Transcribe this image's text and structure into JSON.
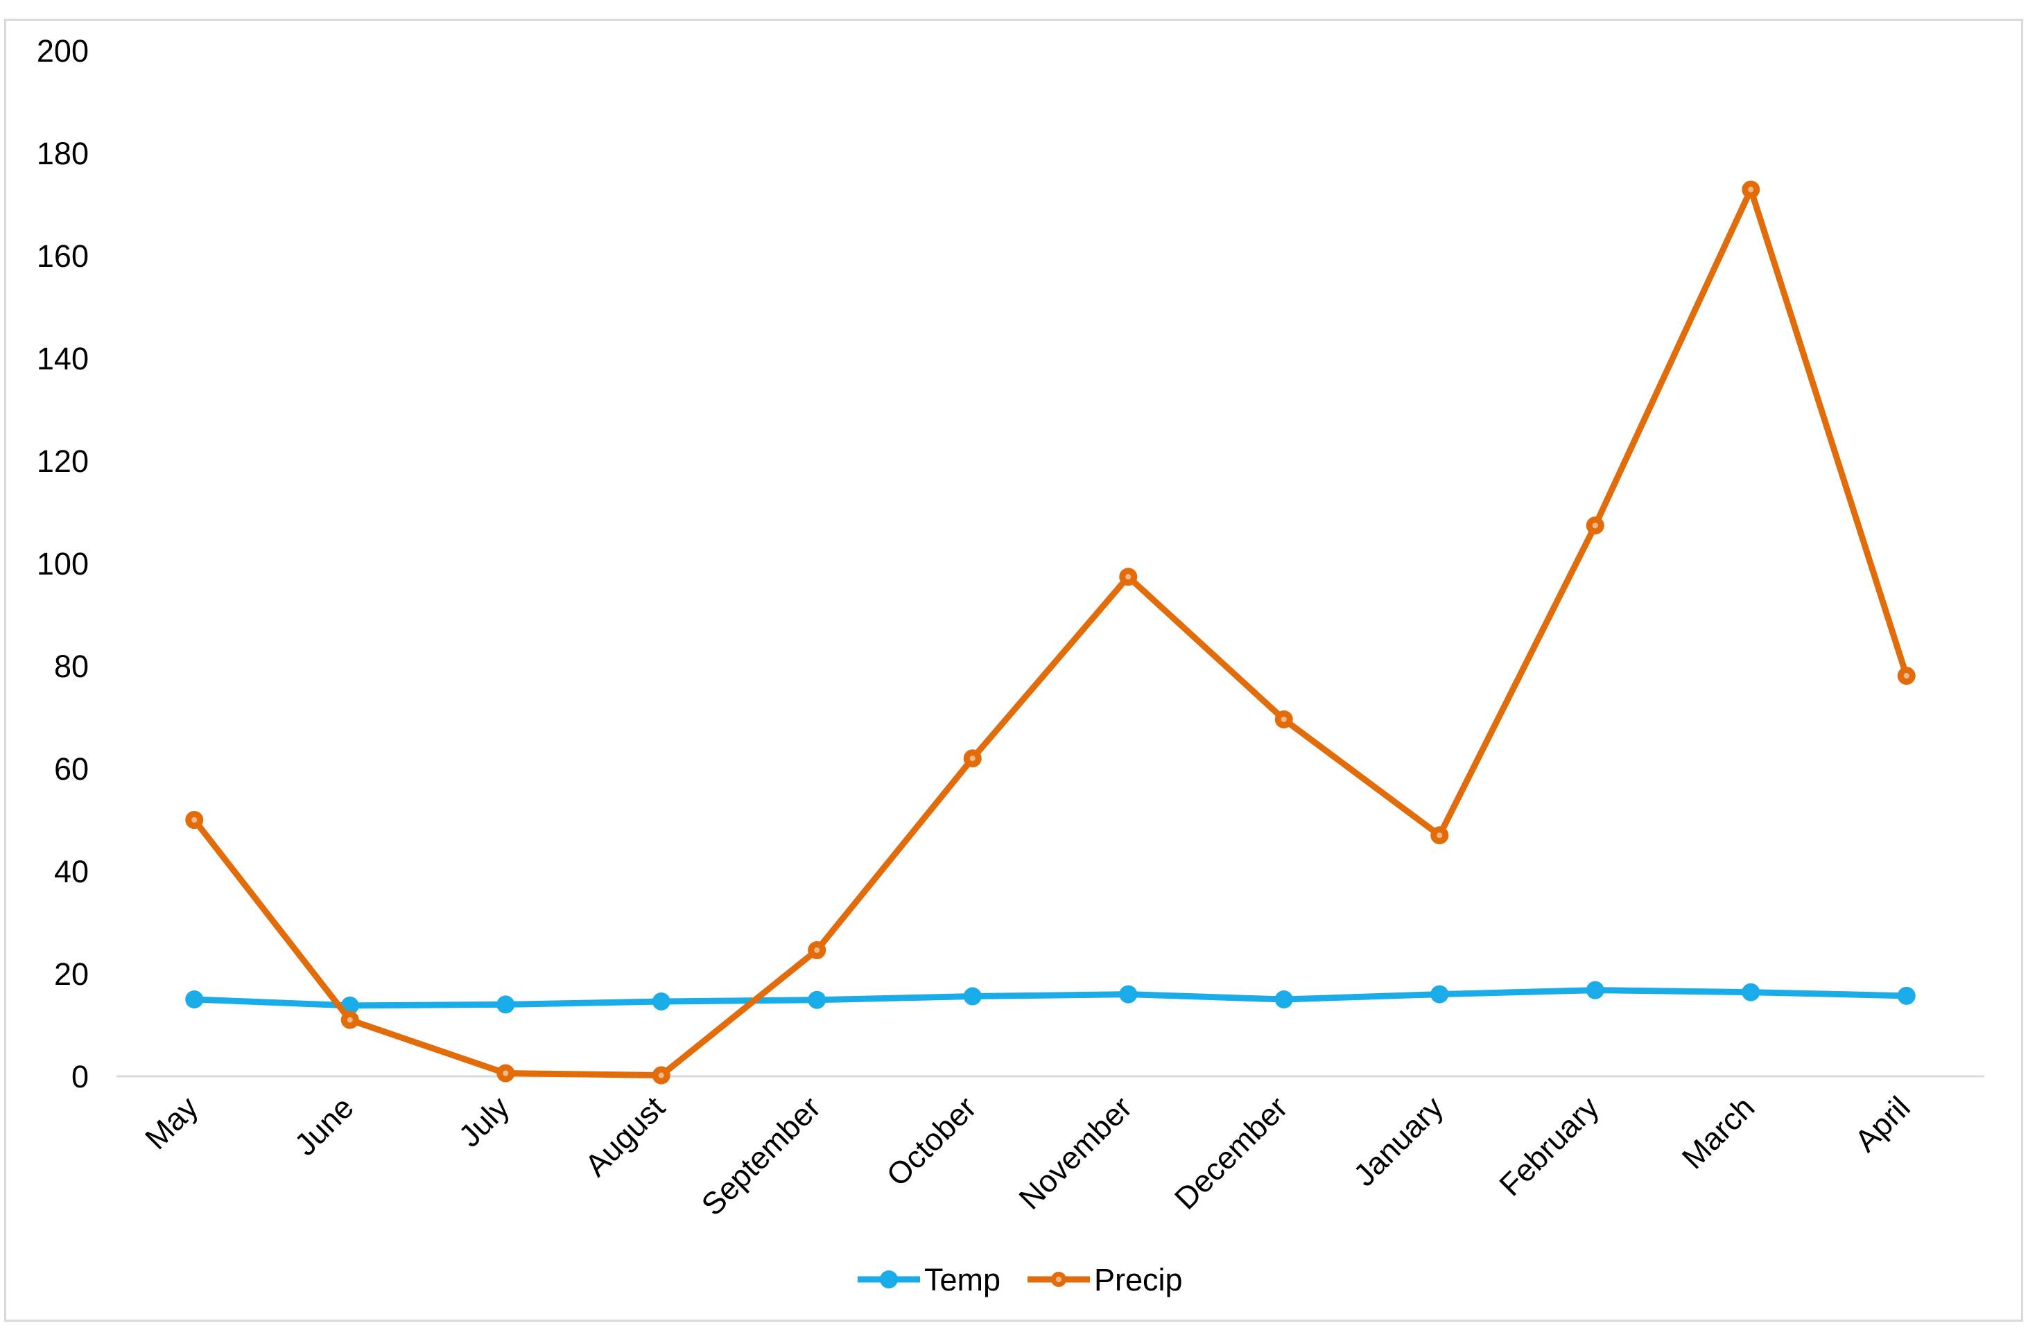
{
  "chart_data": {
    "type": "line",
    "title": "",
    "xlabel": "",
    "ylabel": "",
    "categories": [
      "May",
      "June",
      "July",
      "August",
      "September",
      "October",
      "November",
      "December",
      "January",
      "February",
      "March",
      "April"
    ],
    "ylim": [
      0,
      200
    ],
    "yticks": [
      0,
      20,
      40,
      60,
      80,
      100,
      120,
      140,
      160,
      180,
      200
    ],
    "grid": false,
    "legend_position": "bottom",
    "series": [
      {
        "name": "Temp",
        "color": "#1aace8",
        "marker": "filled-circle",
        "values": [
          15,
          13.8,
          14,
          14.6,
          14.9,
          15.6,
          16,
          15,
          16,
          16.8,
          16.4,
          15.7
        ]
      },
      {
        "name": "Precip",
        "color": "#e36c0a",
        "marker": "ring-circle",
        "values": [
          50,
          11,
          0.6,
          0.2,
          24.6,
          62,
          97.4,
          69.6,
          47,
          107.4,
          172.9,
          78.1
        ]
      }
    ]
  }
}
